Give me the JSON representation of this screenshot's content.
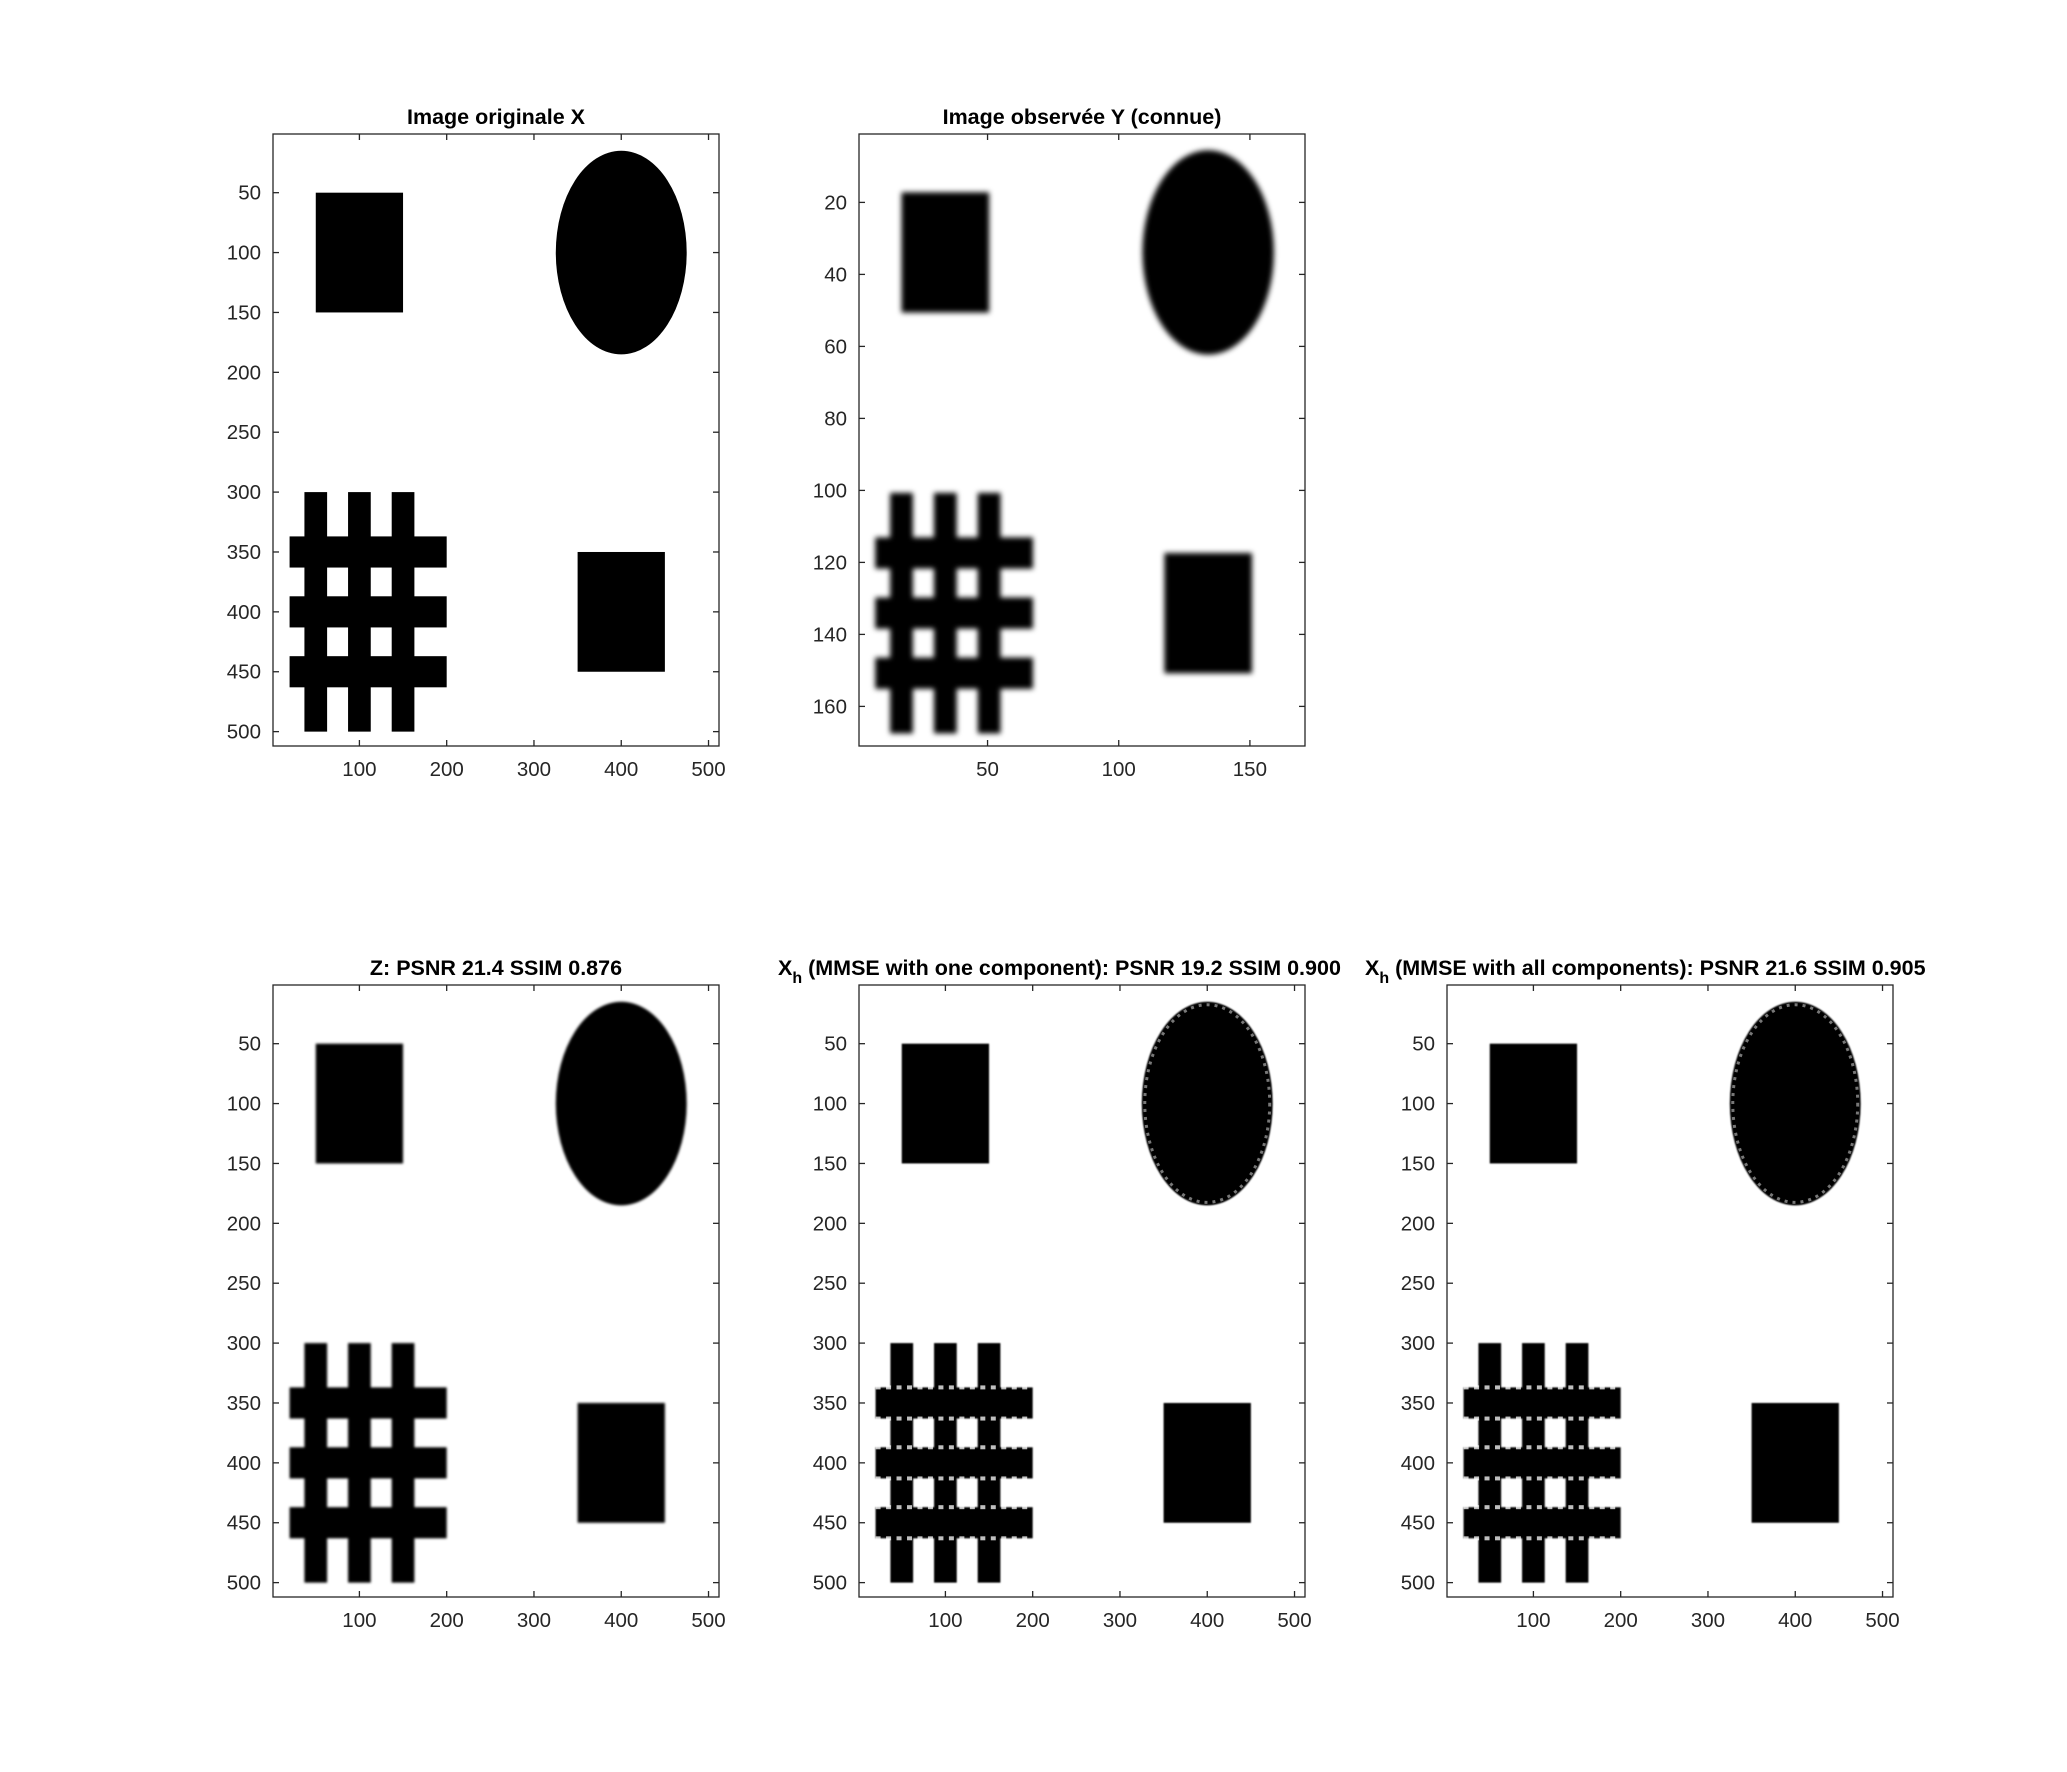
{
  "chart_data": [
    {
      "type": "image",
      "title": "Image originale X",
      "xlim": [
        1,
        512
      ],
      "ylim": [
        1,
        512
      ],
      "y_reversed": true,
      "xticks": [
        100,
        200,
        300,
        400,
        500
      ],
      "yticks": [
        50,
        100,
        150,
        200,
        250,
        300,
        350,
        400,
        450,
        500
      ],
      "rendering": "sharp"
    },
    {
      "type": "image",
      "title": "Image observée Y (connue)",
      "xlim": [
        1,
        171
      ],
      "ylim": [
        1,
        171
      ],
      "y_reversed": true,
      "xticks": [
        50,
        100,
        150
      ],
      "yticks": [
        20,
        40,
        60,
        80,
        100,
        120,
        140,
        160
      ],
      "rendering": "blurred"
    },
    {
      "type": "image",
      "title": "Z: PSNR 21.4 SSIM 0.876",
      "xlim": [
        1,
        512
      ],
      "ylim": [
        1,
        512
      ],
      "y_reversed": true,
      "xticks": [
        100,
        200,
        300,
        400,
        500
      ],
      "yticks": [
        50,
        100,
        150,
        200,
        250,
        300,
        350,
        400,
        450,
        500
      ],
      "rendering": "slightly-blurred"
    },
    {
      "type": "image",
      "title_main": "X",
      "title_sub": "h",
      "title_rest": " (MMSE with one component): PSNR 19.2 SSIM 0.900",
      "xlim": [
        1,
        512
      ],
      "ylim": [
        1,
        512
      ],
      "y_reversed": true,
      "xticks": [
        100,
        200,
        300,
        400,
        500
      ],
      "yticks": [
        50,
        100,
        150,
        200,
        250,
        300,
        350,
        400,
        450,
        500
      ],
      "rendering": "ragged"
    },
    {
      "type": "image",
      "title_main": "X",
      "title_sub": "h",
      "title_rest": " (MMSE with all components): PSNR 21.6 SSIM 0.905",
      "xlim": [
        1,
        512
      ],
      "ylim": [
        1,
        512
      ],
      "y_reversed": true,
      "xticks": [
        100,
        200,
        300,
        400,
        500
      ],
      "yticks": [
        50,
        100,
        150,
        200,
        250,
        300,
        350,
        400,
        450,
        500
      ],
      "rendering": "ragged"
    }
  ],
  "scene": {
    "rect_top_left": {
      "x": [
        50,
        150
      ],
      "y": [
        50,
        150
      ]
    },
    "ellipse_top_right": {
      "cx": 400,
      "cy": 100,
      "rx": 75,
      "ry": 85
    },
    "rect_bottom_right": {
      "x": [
        350,
        450
      ],
      "y": [
        350,
        450
      ]
    },
    "grid_vertical_bars": [
      {
        "x": [
          37,
          63
        ],
        "y": [
          300,
          500
        ]
      },
      {
        "x": [
          87,
          113
        ],
        "y": [
          300,
          500
        ]
      },
      {
        "x": [
          137,
          163
        ],
        "y": [
          300,
          500
        ]
      }
    ],
    "grid_horizontal_bars": [
      {
        "x": [
          20,
          200
        ],
        "y": [
          337,
          363
        ]
      },
      {
        "x": [
          20,
          200
        ],
        "y": [
          387,
          413
        ]
      },
      {
        "x": [
          20,
          200
        ],
        "y": [
          437,
          463
        ]
      }
    ]
  }
}
